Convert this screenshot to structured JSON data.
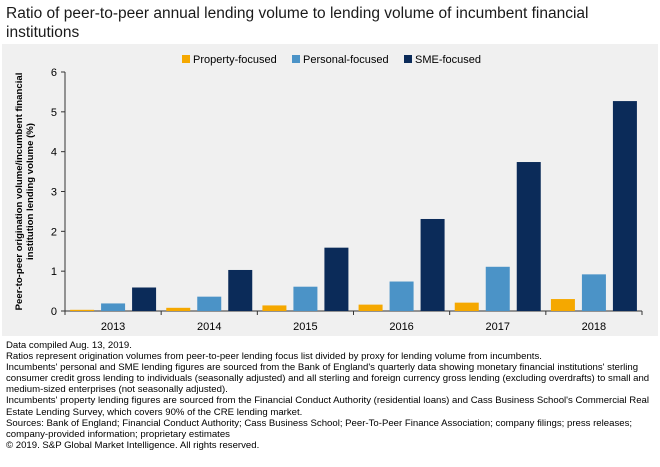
{
  "title": "Ratio of peer-to-peer annual lending volume to lending volume of incumbent financial institutions",
  "chart_data": {
    "type": "bar",
    "title": "Ratio of peer-to-peer annual lending volume to lending volume of incumbent financial institutions",
    "categories": [
      "2013",
      "2014",
      "2015",
      "2016",
      "2017",
      "2018"
    ],
    "series": [
      {
        "name": "Property-focused",
        "color": "#f5a800",
        "values": [
          0.03,
          0.08,
          0.14,
          0.16,
          0.21,
          0.3
        ]
      },
      {
        "name": "Personal-focused",
        "color": "#4b93c7",
        "values": [
          0.19,
          0.36,
          0.61,
          0.74,
          1.11,
          0.92
        ]
      },
      {
        "name": "SME-focused",
        "color": "#0b2b59",
        "values": [
          0.59,
          1.03,
          1.59,
          2.31,
          3.74,
          5.27
        ]
      }
    ],
    "xlabel": "",
    "ylabel": "Peer-to-peer origination volume/incumbent financial institution lending volume (%)",
    "ylim": [
      0,
      6
    ],
    "yticks": [
      "0",
      "1",
      "2",
      "3",
      "4",
      "5",
      "6"
    ],
    "grid": false,
    "legend": "top"
  },
  "notes": [
    "Data compiled Aug. 13, 2019.",
    "Ratios represent origination volumes from peer-to-peer lending focus list divided by proxy for lending volume from incumbents.",
    "Incumbents' personal and SME lending figures are sourced from the Bank of England's quarterly data showing monetary financial institutions' sterling consumer credit gross lending to individuals (seasonally adjusted) and all sterling and foreign currency gross lending (excluding overdrafts) to small and medium-sized enterprises (not seasonally adjusted).",
    "Incumbents' property lending figures are sourced from the Financial Conduct Authority (residential loans) and Cass Business School's Commercial Real Estate Lending Survey, which covers 90% of the CRE lending market.",
    "Sources: Bank of England; Financial Conduct Authority; Cass Business School; Peer-To-Peer Finance Association; company filings; press releases; company-provided information; proprietary estimates",
    "© 2019. S&P Global Market Intelligence. All rights reserved."
  ]
}
